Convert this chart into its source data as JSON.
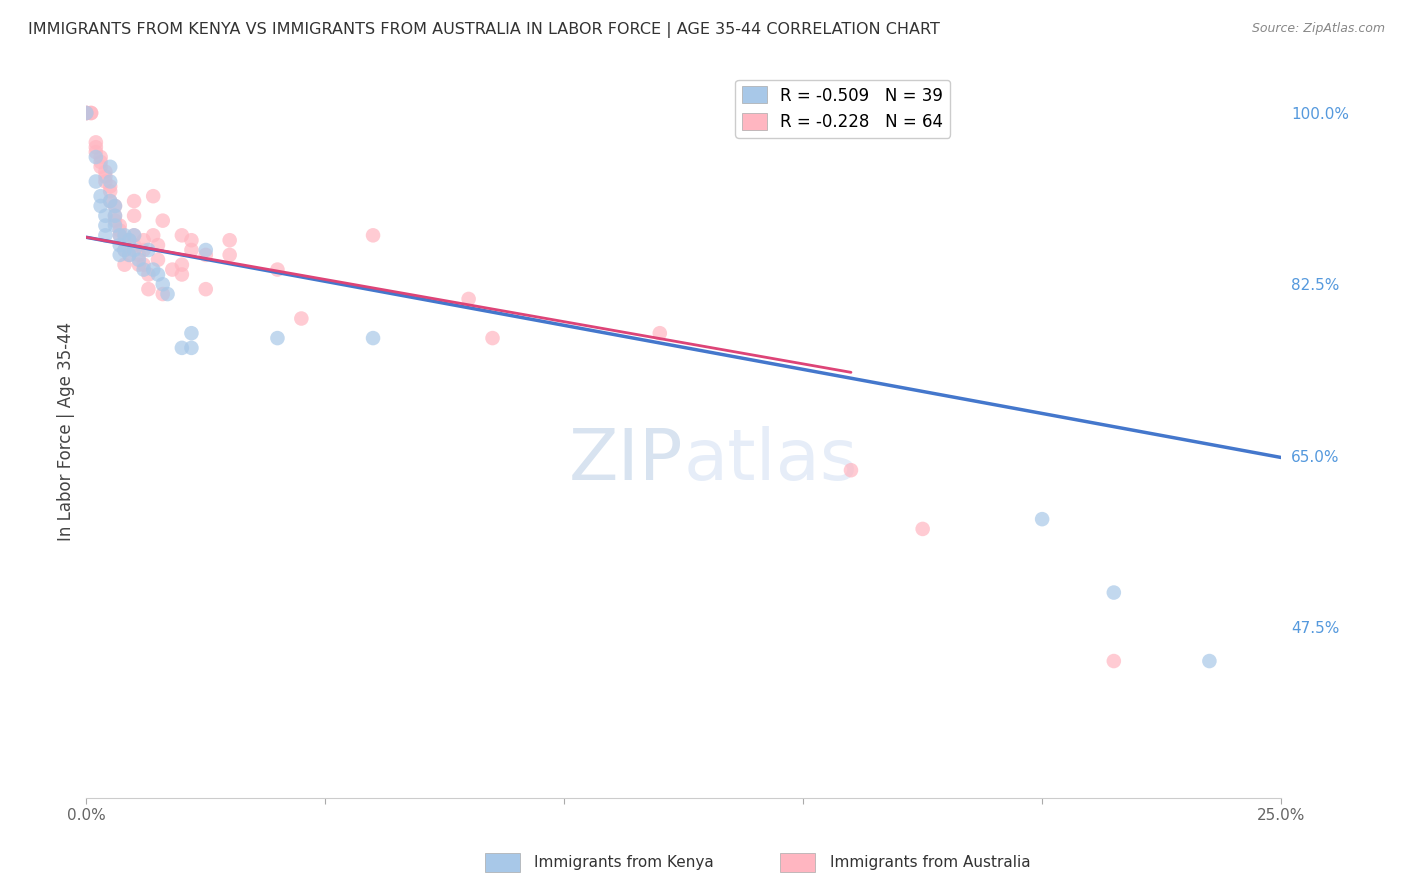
{
  "title": "IMMIGRANTS FROM KENYA VS IMMIGRANTS FROM AUSTRALIA IN LABOR FORCE | AGE 35-44 CORRELATION CHART",
  "source": "Source: ZipAtlas.com",
  "ylabel": "In Labor Force | Age 35-44",
  "xlim": [
    0.0,
    0.25
  ],
  "ylim": [
    0.3,
    1.05
  ],
  "yticks": [
    0.475,
    0.65,
    0.825,
    1.0
  ],
  "ytick_labels": [
    "47.5%",
    "65.0%",
    "82.5%",
    "100.0%"
  ],
  "xticks": [
    0.0,
    0.05,
    0.1,
    0.15,
    0.2,
    0.25
  ],
  "xtick_labels": [
    "0.0%",
    "",
    "",
    "",
    "",
    "25.0%"
  ],
  "kenya_color": "#a8c8e8",
  "australia_color": "#ffb6c1",
  "kenya_line_color": "#4477cc",
  "australia_line_color": "#dd4477",
  "kenya_line": [
    [
      0.0,
      0.873
    ],
    [
      0.25,
      0.648
    ]
  ],
  "australia_line": [
    [
      0.0,
      0.873
    ],
    [
      0.16,
      0.735
    ]
  ],
  "kenya_scatter": [
    [
      0.0,
      1.0
    ],
    [
      0.002,
      0.955
    ],
    [
      0.002,
      0.93
    ],
    [
      0.003,
      0.915
    ],
    [
      0.003,
      0.905
    ],
    [
      0.004,
      0.895
    ],
    [
      0.004,
      0.885
    ],
    [
      0.004,
      0.875
    ],
    [
      0.005,
      0.945
    ],
    [
      0.005,
      0.93
    ],
    [
      0.005,
      0.91
    ],
    [
      0.006,
      0.905
    ],
    [
      0.006,
      0.895
    ],
    [
      0.006,
      0.885
    ],
    [
      0.007,
      0.875
    ],
    [
      0.007,
      0.865
    ],
    [
      0.007,
      0.855
    ],
    [
      0.008,
      0.875
    ],
    [
      0.008,
      0.86
    ],
    [
      0.009,
      0.87
    ],
    [
      0.009,
      0.855
    ],
    [
      0.01,
      0.875
    ],
    [
      0.01,
      0.86
    ],
    [
      0.011,
      0.85
    ],
    [
      0.012,
      0.84
    ],
    [
      0.013,
      0.86
    ],
    [
      0.014,
      0.84
    ],
    [
      0.015,
      0.835
    ],
    [
      0.016,
      0.825
    ],
    [
      0.017,
      0.815
    ],
    [
      0.02,
      0.76
    ],
    [
      0.022,
      0.775
    ],
    [
      0.022,
      0.76
    ],
    [
      0.025,
      0.86
    ],
    [
      0.04,
      0.77
    ],
    [
      0.06,
      0.77
    ],
    [
      0.2,
      0.585
    ],
    [
      0.215,
      0.51
    ],
    [
      0.235,
      0.44
    ]
  ],
  "australia_scatter": [
    [
      0.0,
      1.0
    ],
    [
      0.0,
      1.0
    ],
    [
      0.0,
      1.0
    ],
    [
      0.001,
      1.0
    ],
    [
      0.001,
      1.0
    ],
    [
      0.002,
      0.97
    ],
    [
      0.002,
      0.965
    ],
    [
      0.002,
      0.96
    ],
    [
      0.003,
      0.955
    ],
    [
      0.003,
      0.95
    ],
    [
      0.003,
      0.945
    ],
    [
      0.004,
      0.94
    ],
    [
      0.004,
      0.935
    ],
    [
      0.004,
      0.93
    ],
    [
      0.005,
      0.925
    ],
    [
      0.005,
      0.92
    ],
    [
      0.005,
      0.91
    ],
    [
      0.006,
      0.905
    ],
    [
      0.006,
      0.895
    ],
    [
      0.006,
      0.89
    ],
    [
      0.007,
      0.885
    ],
    [
      0.007,
      0.88
    ],
    [
      0.007,
      0.875
    ],
    [
      0.008,
      0.87
    ],
    [
      0.008,
      0.86
    ],
    [
      0.008,
      0.845
    ],
    [
      0.009,
      0.87
    ],
    [
      0.009,
      0.855
    ],
    [
      0.01,
      0.91
    ],
    [
      0.01,
      0.895
    ],
    [
      0.01,
      0.875
    ],
    [
      0.01,
      0.865
    ],
    [
      0.011,
      0.855
    ],
    [
      0.011,
      0.845
    ],
    [
      0.012,
      0.87
    ],
    [
      0.012,
      0.86
    ],
    [
      0.012,
      0.845
    ],
    [
      0.013,
      0.835
    ],
    [
      0.013,
      0.82
    ],
    [
      0.014,
      0.915
    ],
    [
      0.014,
      0.875
    ],
    [
      0.015,
      0.865
    ],
    [
      0.015,
      0.85
    ],
    [
      0.016,
      0.89
    ],
    [
      0.016,
      0.815
    ],
    [
      0.018,
      0.84
    ],
    [
      0.02,
      0.875
    ],
    [
      0.02,
      0.845
    ],
    [
      0.02,
      0.835
    ],
    [
      0.022,
      0.87
    ],
    [
      0.022,
      0.86
    ],
    [
      0.025,
      0.855
    ],
    [
      0.025,
      0.82
    ],
    [
      0.03,
      0.87
    ],
    [
      0.03,
      0.855
    ],
    [
      0.04,
      0.84
    ],
    [
      0.045,
      0.79
    ],
    [
      0.06,
      0.875
    ],
    [
      0.08,
      0.81
    ],
    [
      0.085,
      0.77
    ],
    [
      0.12,
      0.775
    ],
    [
      0.16,
      0.635
    ],
    [
      0.175,
      0.575
    ],
    [
      0.215,
      0.44
    ]
  ],
  "watermark_zip": "ZIP",
  "watermark_atlas": "atlas",
  "background_color": "#ffffff",
  "grid_color": "#cccccc",
  "title_color": "#333333",
  "axis_label_color": "#444444",
  "right_axis_color": "#5599dd",
  "legend_kenya_label": "R = -0.509   N = 39",
  "legend_australia_label": "R = -0.228   N = 64"
}
